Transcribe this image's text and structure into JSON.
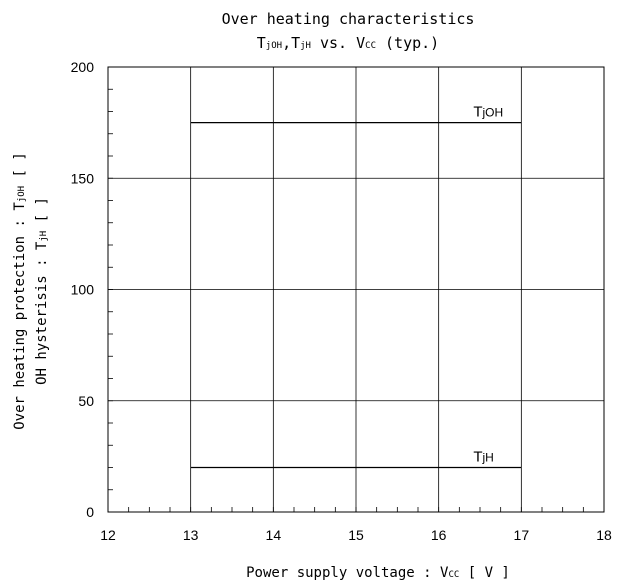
{
  "chart_data": {
    "type": "line",
    "title": "Over heating characteristics",
    "subtitle": {
      "a_main": "T",
      "a_sub": "jOH",
      "sep": ",",
      "b_main": "T",
      "b_sub": "jH",
      "vs": " vs. ",
      "c_main": "V",
      "c_sub": "CC",
      "tail": " (typ.)"
    },
    "xlabel": {
      "prefix": "Power supply voltage  :  ",
      "main": "V",
      "sub": "CC",
      "suffix": " [ V ]"
    },
    "ylabel_line1": {
      "prefix": "Over heating protection : ",
      "main": "T",
      "sub": "jOH",
      "suffix": " [  ]"
    },
    "ylabel_line2": {
      "prefix": "OH hysterisis : ",
      "main": "T",
      "sub": "jH",
      "suffix": " [  ]"
    },
    "xlim": [
      12,
      18
    ],
    "ylim": [
      0,
      200
    ],
    "x_ticks": [
      "12",
      "13",
      "14",
      "15",
      "16",
      "17",
      "18"
    ],
    "y_ticks": [
      "0",
      "50",
      "100",
      "150",
      "200"
    ],
    "grid": true,
    "series": [
      {
        "name": "TjOH",
        "label_main": "T",
        "label_sub": "jOH",
        "x": [
          13,
          17
        ],
        "y": [
          175,
          175
        ],
        "color": "#000000"
      },
      {
        "name": "TjH",
        "label_main": "T",
        "label_sub": "jH",
        "x": [
          13,
          17
        ],
        "y": [
          20,
          20
        ],
        "color": "#000000"
      }
    ]
  }
}
